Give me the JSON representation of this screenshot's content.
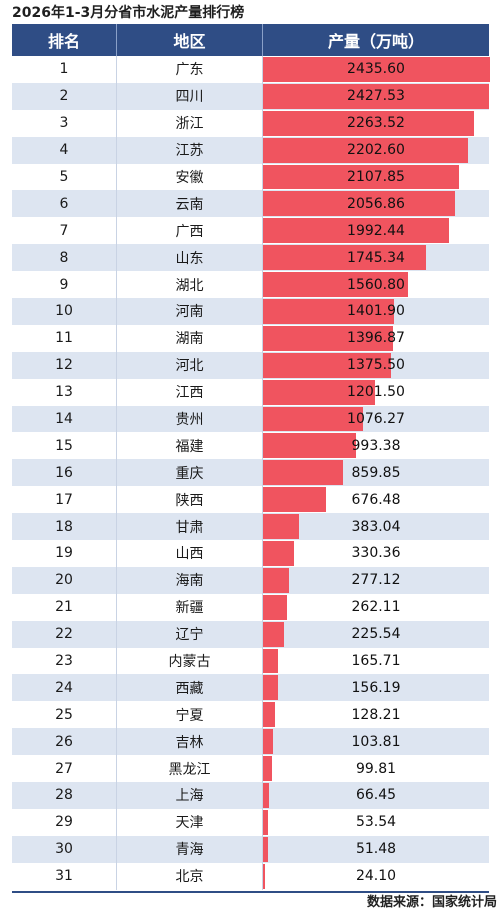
{
  "title": "2026年1-3月分省市水泥产量排行榜",
  "source": "数据来源：国家统计局",
  "colors": {
    "header": "#2f4d85",
    "bar": "#f0545f",
    "alt_row": "#dde5f1"
  },
  "chart_data": {
    "type": "bar",
    "title": "2026年1-3月分省市水泥产量排行榜",
    "columns": [
      "排名",
      "地区",
      "产量（万吨）"
    ],
    "ranks": [
      "1",
      "2",
      "3",
      "4",
      "5",
      "6",
      "7",
      "8",
      "9",
      "10",
      "11",
      "12",
      "13",
      "14",
      "15",
      "16",
      "17",
      "18",
      "19",
      "20",
      "21",
      "22",
      "23",
      "24",
      "25",
      "26",
      "27",
      "28",
      "29",
      "30",
      "31"
    ],
    "categories": [
      "广东",
      "四川",
      "浙江",
      "江苏",
      "安徽",
      "云南",
      "广西",
      "山东",
      "湖北",
      "河南",
      "湖南",
      "河北",
      "江西",
      "贵州",
      "福建",
      "重庆",
      "陕西",
      "甘肃",
      "山西",
      "海南",
      "新疆",
      "辽宁",
      "内蒙古",
      "西藏",
      "宁夏",
      "吉林",
      "黑龙江",
      "上海",
      "天津",
      "青海",
      "北京"
    ],
    "values": [
      2435.6,
      2427.53,
      2263.52,
      2202.6,
      2107.85,
      2056.86,
      1992.44,
      1745.34,
      1560.8,
      1401.9,
      1396.87,
      1375.5,
      1201.5,
      1076.27,
      993.38,
      859.85,
      676.48,
      383.04,
      330.36,
      277.12,
      262.11,
      225.54,
      165.71,
      156.19,
      128.21,
      103.81,
      99.81,
      66.45,
      53.54,
      51.48,
      24.1
    ],
    "value_labels": [
      "2435.60",
      "2427.53",
      "2263.52",
      "2202.60",
      "2107.85",
      "2056.86",
      "1992.44",
      "1745.34",
      "1560.80",
      "1401.90",
      "1396.87",
      "1375.50",
      "1201.50",
      "1076.27",
      "993.38",
      "859.85",
      "676.48",
      "383.04",
      "330.36",
      "277.12",
      "262.11",
      "225.54",
      "165.71",
      "156.19",
      "128.21",
      "103.81",
      "99.81",
      "66.45",
      "53.54",
      "51.48",
      "24.10"
    ],
    "xlim": [
      0,
      2435.6
    ]
  }
}
